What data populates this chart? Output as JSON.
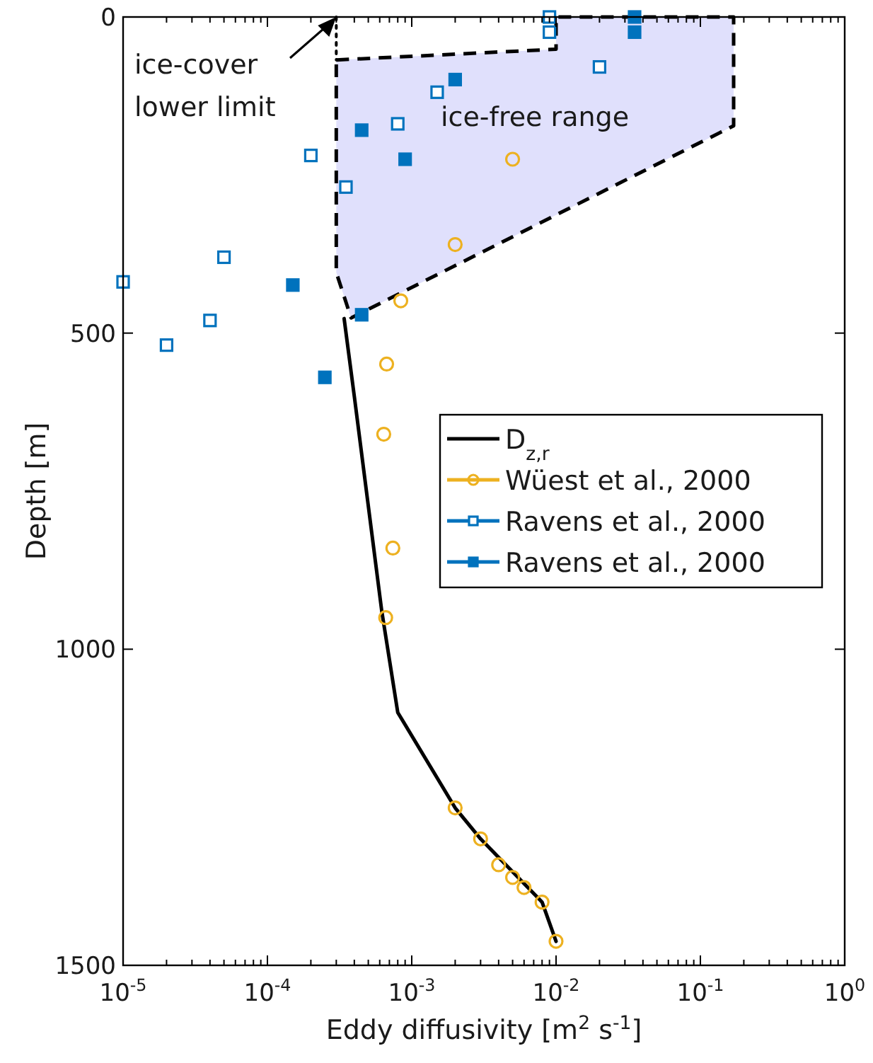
{
  "chart_data": {
    "type": "scatter",
    "xlabel": "Eddy diffusivity [m$^{2}$ s$^{-1}$]",
    "ylabel": "Depth [m]",
    "log": "x",
    "xlim": [
      1e-05,
      1
    ],
    "ylim": [
      1500,
      0
    ],
    "xticks": [
      {
        "value": 1e-05,
        "label": "10$^{-5}$"
      },
      {
        "value": 2e-05,
        "label": null
      },
      {
        "value": 3e-05,
        "label": null
      },
      {
        "value": 4e-05,
        "label": null
      },
      {
        "value": 5e-05,
        "label": null
      },
      {
        "value": 6e-05,
        "label": null
      },
      {
        "value": 7e-05,
        "label": null
      },
      {
        "value": 8e-05,
        "label": null
      },
      {
        "value": 9e-05,
        "label": null
      },
      {
        "value": 0.0001,
        "label": "10$^{-4}$"
      },
      {
        "value": 0.0002,
        "label": null
      },
      {
        "value": 0.0003,
        "label": null
      },
      {
        "value": 0.0004,
        "label": null
      },
      {
        "value": 0.0005,
        "label": null
      },
      {
        "value": 0.0006,
        "label": null
      },
      {
        "value": 0.0007,
        "label": null
      },
      {
        "value": 0.0008,
        "label": null
      },
      {
        "value": 0.0009,
        "label": null
      },
      {
        "value": 0.001,
        "label": "10$^{-3}$"
      },
      {
        "value": 0.002,
        "label": null
      },
      {
        "value": 0.003,
        "label": null
      },
      {
        "value": 0.004,
        "label": null
      },
      {
        "value": 0.005,
        "label": null
      },
      {
        "value": 0.006,
        "label": null
      },
      {
        "value": 0.007,
        "label": null
      },
      {
        "value": 0.008,
        "label": null
      },
      {
        "value": 0.009,
        "label": null
      },
      {
        "value": 0.01,
        "label": "10$^{-2}$"
      },
      {
        "value": 0.02,
        "label": null
      },
      {
        "value": 0.03,
        "label": null
      },
      {
        "value": 0.04,
        "label": null
      },
      {
        "value": 0.05,
        "label": null
      },
      {
        "value": 0.06,
        "label": null
      },
      {
        "value": 0.07,
        "label": null
      },
      {
        "value": 0.08,
        "label": null
      },
      {
        "value": 0.09,
        "label": null
      },
      {
        "value": 0.1,
        "label": "10$^{-1}$"
      },
      {
        "value": 0.2,
        "label": null
      },
      {
        "value": 0.3,
        "label": null
      },
      {
        "value": 0.4,
        "label": null
      },
      {
        "value": 0.5,
        "label": null
      },
      {
        "value": 0.6,
        "label": null
      },
      {
        "value": 0.7,
        "label": null
      },
      {
        "value": 0.8,
        "label": null
      },
      {
        "value": 0.9,
        "label": null
      },
      {
        "value": 1,
        "label": "10$^{0}$"
      }
    ],
    "yticks": [
      0,
      500,
      1000,
      1500
    ],
    "grid": false,
    "legend": "right",
    "annotations": [
      {
        "text": "ice-cover lower limit",
        "x": 0.0003,
        "y": 0
      }
    ],
    "series": [
      {
        "name": "ice-free range",
        "type": "area",
        "color": "#e0e0fc",
        "line_style": "dashed",
        "x": [
          0.0003,
          0.01,
          0.01,
          0.17,
          0.17,
          0.00038,
          0.0003,
          0.0003
        ],
        "values": [
          68,
          51,
          0,
          0,
          172,
          476,
          404,
          68
        ]
      },
      {
        "type": "line",
        "color": "#000000",
        "line_style": "dotted",
        "x": [
          0.0003,
          0.0003
        ],
        "values": [
          0,
          68
        ]
      },
      {
        "name": "D$_{z,r}$",
        "type": "line",
        "color": "#000000",
        "line_style": "solid",
        "marker": "none",
        "x": [
          0.00034,
          0.0004,
          0.00062,
          0.0008,
          0.002,
          0.003,
          0.008,
          0.01
        ],
        "values": [
          477,
          600,
          940,
          1100,
          1251,
          1300,
          1400,
          1462
        ]
      },
      {
        "name": "Wüest et al., 2000",
        "color": "#edb120",
        "marker": "circle",
        "x": [
          0.005,
          0.002,
          0.00084,
          0.00067,
          0.00064,
          0.00074,
          0.00066,
          0.002,
          0.003,
          0.004,
          0.005,
          0.006,
          0.008,
          0.01
        ],
        "values": [
          225,
          360,
          449,
          549,
          660,
          840,
          950,
          1251,
          1300,
          1341,
          1361,
          1377,
          1400,
          1462
        ]
      },
      {
        "name": "Ravens et al., 2000",
        "color": "#0072bd",
        "marker": "square",
        "x": [
          0.009,
          0.009,
          0.02,
          0.0015,
          0.0008,
          0.0002,
          0.00035,
          5e-05,
          1e-05,
          4e-05,
          2e-05
        ],
        "values": [
          0,
          24,
          79,
          119,
          169,
          219,
          269,
          380,
          419,
          480,
          519
        ]
      },
      {
        "name": "Ravens et al., 2000",
        "color": "#0072bd",
        "marker": "square",
        "x": [
          0.035,
          0.035,
          0.002,
          0.00045,
          0.0009,
          0.00015,
          0.00045,
          0.00025
        ],
        "values": [
          0,
          24,
          99,
          179,
          225,
          424,
          471,
          570
        ]
      }
    ]
  }
}
